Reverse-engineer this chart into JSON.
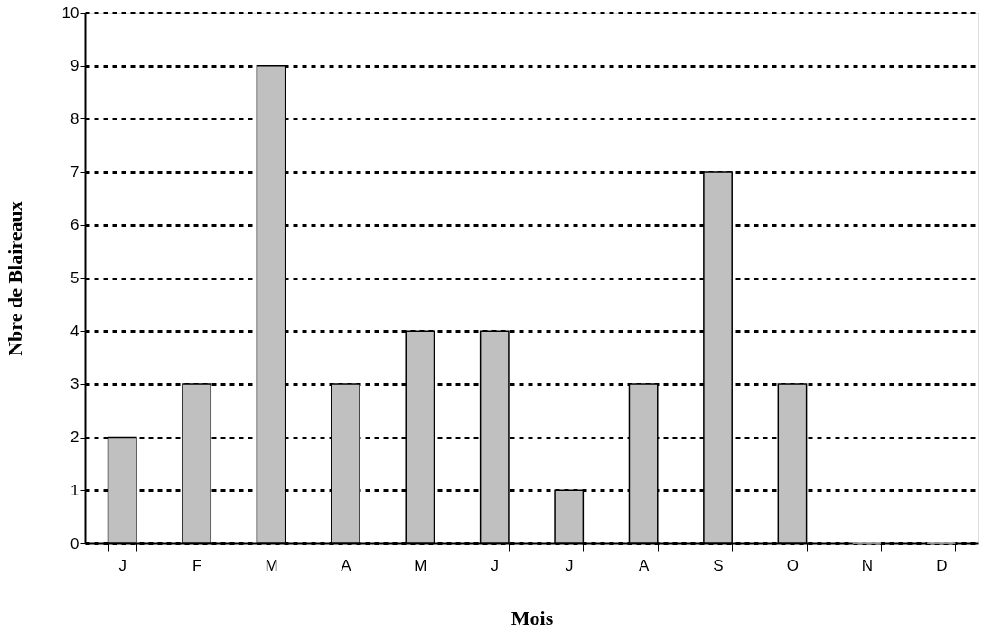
{
  "chart_data": {
    "type": "bar",
    "xlabel": "Mois",
    "ylabel": "Nbre de Blaireaux",
    "categories": [
      "J",
      "F",
      "M",
      "A",
      "M",
      "J",
      "J",
      "A",
      "S",
      "O",
      "N",
      "D"
    ],
    "values": [
      2,
      3,
      9,
      3,
      4,
      4,
      1,
      3,
      7,
      3,
      0,
      0
    ],
    "color": "#c0c0c0",
    "ylim": [
      0,
      10
    ],
    "yticks": [
      0,
      1,
      2,
      3,
      4,
      5,
      6,
      7,
      8,
      9,
      10
    ],
    "grid": "y"
  }
}
